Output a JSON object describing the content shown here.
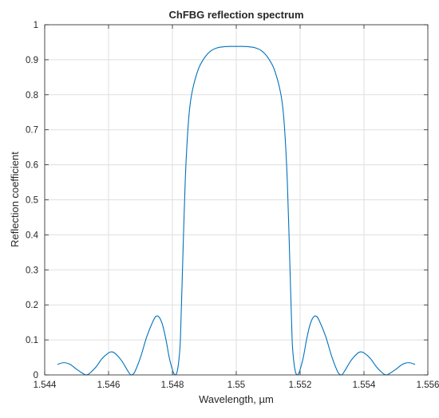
{
  "chart_data": {
    "type": "line",
    "title": "ChFBG reflection spectrum",
    "xlabel": "Wavelength, µm",
    "ylabel": "Reflection coefficient",
    "xlim": [
      1.544,
      1.556
    ],
    "ylim": [
      0,
      1
    ],
    "x_ticks": [
      1.544,
      1.546,
      1.548,
      1.55,
      1.552,
      1.554,
      1.556
    ],
    "x_tick_labels": [
      "1.544",
      "1.546",
      "1.548",
      "1.55",
      "1.552",
      "1.554",
      "1.556"
    ],
    "y_ticks": [
      0,
      0.1,
      0.2,
      0.3,
      0.4,
      0.5,
      0.6,
      0.7,
      0.8,
      0.9,
      1
    ],
    "y_tick_labels": [
      "0",
      "0.1",
      "0.2",
      "0.3",
      "0.4",
      "0.5",
      "0.6",
      "0.7",
      "0.8",
      "0.9",
      "1"
    ],
    "grid": true,
    "line_color": "#0072BD",
    "series": [
      {
        "x": [
          1.5444,
          1.5446,
          1.5448,
          1.545,
          1.5452,
          1.5453,
          1.5454,
          1.5456,
          1.5458,
          1.546,
          1.5461,
          1.5462,
          1.5464,
          1.5466,
          1.5467,
          1.5468,
          1.547,
          1.5472,
          1.5474,
          1.5475,
          1.5476,
          1.5477,
          1.5478,
          1.5479,
          1.548,
          1.54805,
          1.5481,
          1.54815,
          1.5482,
          1.54825,
          1.5483,
          1.5484,
          1.5485,
          1.5486,
          1.5488,
          1.549,
          1.5492,
          1.5494,
          1.5496,
          1.5498,
          1.55,
          1.5502,
          1.5504,
          1.5506,
          1.5508,
          1.551,
          1.5512,
          1.5514,
          1.5515,
          1.5516,
          1.5517,
          1.55175,
          1.5518,
          1.55185,
          1.5519,
          1.55195,
          1.552,
          1.5521,
          1.5522,
          1.5523,
          1.5524,
          1.5525,
          1.5526,
          1.5528,
          1.553,
          1.5532,
          1.5533,
          1.5534,
          1.5536,
          1.5538,
          1.5539,
          1.554,
          1.5542,
          1.5544,
          1.5546,
          1.5547,
          1.5548,
          1.555,
          1.5552,
          1.5554,
          1.5556
        ],
        "y": [
          0.03,
          0.035,
          0.03,
          0.016,
          0.004,
          0.0,
          0.004,
          0.022,
          0.047,
          0.063,
          0.066,
          0.062,
          0.042,
          0.012,
          0.0,
          0.005,
          0.05,
          0.11,
          0.155,
          0.168,
          0.163,
          0.14,
          0.1,
          0.05,
          0.015,
          0.003,
          0.0,
          0.01,
          0.04,
          0.1,
          0.25,
          0.55,
          0.72,
          0.8,
          0.87,
          0.905,
          0.925,
          0.934,
          0.937,
          0.938,
          0.938,
          0.938,
          0.937,
          0.934,
          0.925,
          0.905,
          0.87,
          0.8,
          0.72,
          0.55,
          0.25,
          0.1,
          0.04,
          0.01,
          0.0,
          0.003,
          0.015,
          0.05,
          0.1,
          0.14,
          0.163,
          0.168,
          0.155,
          0.11,
          0.05,
          0.005,
          0.0,
          0.012,
          0.042,
          0.062,
          0.066,
          0.063,
          0.047,
          0.022,
          0.004,
          0.0,
          0.004,
          0.016,
          0.03,
          0.035,
          0.03
        ]
      }
    ]
  }
}
